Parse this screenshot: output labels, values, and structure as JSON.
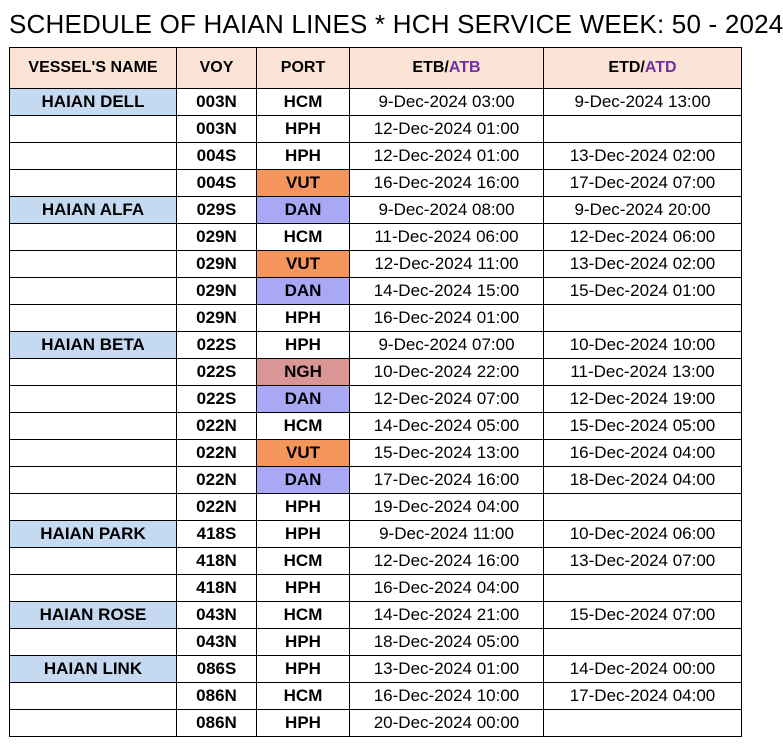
{
  "title": "SCHEDULE OF HAIAN LINES * HCH SERVICE WEEK: 50 - 2024",
  "headers": {
    "vessel": "VESSEL'S NAME",
    "voy": "VOY",
    "port": "PORT",
    "etb_prefix": "ETB/",
    "etb_suffix": "ATB",
    "etd_prefix": "ETD/",
    "etd_suffix": "ATD"
  },
  "colors": {
    "header_bg": "#fbe4d5",
    "vessel_bg": "#c5d9f1",
    "atb_text": "#7030a0",
    "port_VUT": "#f4955c",
    "port_DAN": "#a8a8f5",
    "port_NGH": "#d99694"
  },
  "rows": [
    {
      "vessel": "HAIAN DELL",
      "voy": "003N",
      "port": "HCM",
      "etb": "9-Dec-2024 03:00",
      "etd": "9-Dec-2024 13:00"
    },
    {
      "vessel": "",
      "voy": "003N",
      "port": "HPH",
      "etb": "12-Dec-2024 01:00",
      "etd": ""
    },
    {
      "vessel": "",
      "voy": "004S",
      "port": "HPH",
      "etb": "12-Dec-2024 01:00",
      "etd": "13-Dec-2024 02:00"
    },
    {
      "vessel": "",
      "voy": "004S",
      "port": "VUT",
      "etb": "16-Dec-2024 16:00",
      "etd": "17-Dec-2024 07:00"
    },
    {
      "vessel": "HAIAN ALFA",
      "voy": "029S",
      "port": "DAN",
      "etb": "9-Dec-2024 08:00",
      "etd": "9-Dec-2024 20:00"
    },
    {
      "vessel": "",
      "voy": "029N",
      "port": "HCM",
      "etb": "11-Dec-2024 06:00",
      "etd": "12-Dec-2024 06:00"
    },
    {
      "vessel": "",
      "voy": "029N",
      "port": "VUT",
      "etb": "12-Dec-2024 11:00",
      "etd": "13-Dec-2024 02:00"
    },
    {
      "vessel": "",
      "voy": "029N",
      "port": "DAN",
      "etb": "14-Dec-2024 15:00",
      "etd": "15-Dec-2024 01:00"
    },
    {
      "vessel": "",
      "voy": "029N",
      "port": "HPH",
      "etb": "16-Dec-2024 01:00",
      "etd": ""
    },
    {
      "vessel": "HAIAN BETA",
      "voy": "022S",
      "port": "HPH",
      "etb": "9-Dec-2024 07:00",
      "etd": "10-Dec-2024 10:00"
    },
    {
      "vessel": "",
      "voy": "022S",
      "port": "NGH",
      "etb": "10-Dec-2024 22:00",
      "etd": "11-Dec-2024 13:00"
    },
    {
      "vessel": "",
      "voy": "022S",
      "port": "DAN",
      "etb": "12-Dec-2024 07:00",
      "etd": "12-Dec-2024 19:00"
    },
    {
      "vessel": "",
      "voy": "022N",
      "port": "HCM",
      "etb": "14-Dec-2024 05:00",
      "etd": "15-Dec-2024 05:00"
    },
    {
      "vessel": "",
      "voy": "022N",
      "port": "VUT",
      "etb": "15-Dec-2024 13:00",
      "etd": "16-Dec-2024 04:00"
    },
    {
      "vessel": "",
      "voy": "022N",
      "port": "DAN",
      "etb": "17-Dec-2024 16:00",
      "etd": "18-Dec-2024 04:00"
    },
    {
      "vessel": "",
      "voy": "022N",
      "port": "HPH",
      "etb": "19-Dec-2024 04:00",
      "etd": ""
    },
    {
      "vessel": "HAIAN PARK",
      "voy": "418S",
      "port": "HPH",
      "etb": "9-Dec-2024 11:00",
      "etd": "10-Dec-2024 06:00"
    },
    {
      "vessel": "",
      "voy": "418N",
      "port": "HCM",
      "etb": "12-Dec-2024 16:00",
      "etd": "13-Dec-2024 07:00"
    },
    {
      "vessel": "",
      "voy": "418N",
      "port": "HPH",
      "etb": "16-Dec-2024 04:00",
      "etd": ""
    },
    {
      "vessel": "HAIAN ROSE",
      "voy": "043N",
      "port": "HCM",
      "etb": "14-Dec-2024 21:00",
      "etd": "15-Dec-2024 07:00"
    },
    {
      "vessel": "",
      "voy": "043N",
      "port": "HPH",
      "etb": "18-Dec-2024 05:00",
      "etd": ""
    },
    {
      "vessel": "HAIAN LINK",
      "voy": "086S",
      "port": "HPH",
      "etb": "13-Dec-2024 01:00",
      "etd": "14-Dec-2024 00:00"
    },
    {
      "vessel": "",
      "voy": "086N",
      "port": "HCM",
      "etb": "16-Dec-2024 10:00",
      "etd": "17-Dec-2024 04:00"
    },
    {
      "vessel": "",
      "voy": "086N",
      "port": "HPH",
      "etb": "20-Dec-2024 00:00",
      "etd": ""
    }
  ]
}
